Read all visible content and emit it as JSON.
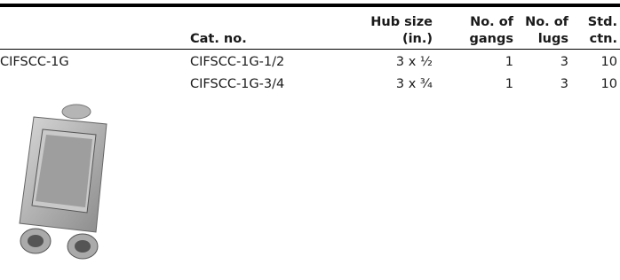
{
  "table": {
    "header": [
      [
        "Cat. no."
      ],
      [
        "Hub size",
        "(in.)"
      ],
      [
        "No. of",
        "gangs"
      ],
      [
        "No. of",
        "lugs"
      ],
      [
        "Std.",
        "ctn."
      ]
    ],
    "product": "CIFSCC-1G",
    "rows": [
      [
        "CIFSCC-1G-1/2",
        "3 x ½",
        "1",
        "3",
        "10"
      ],
      [
        "CIFSCC-1G-3/4",
        "3 x ¾",
        "1",
        "3",
        "10"
      ]
    ]
  }
}
